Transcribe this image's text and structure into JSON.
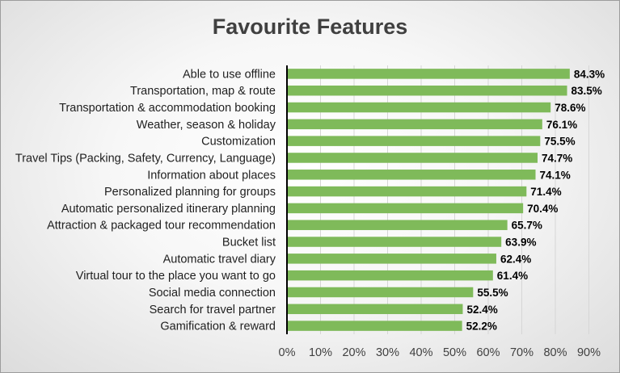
{
  "chart_data": {
    "type": "bar",
    "orientation": "horizontal",
    "title": "Favourite Features",
    "categories": [
      "Able to use offline",
      "Transportation, map & route",
      "Transportation & accommodation booking",
      "Weather, season & holiday",
      "Customization",
      "Travel Tips (Packing, Safety, Currency, Language)",
      "Information about places",
      "Personalized planning for groups",
      "Automatic personalized itinerary planning",
      "Attraction & packaged tour recommendation",
      "Bucket list",
      "Automatic travel diary",
      "Virtual tour to the place you want to go",
      "Social media connection",
      "Search for travel partner",
      "Gamification & reward"
    ],
    "values": [
      84.3,
      83.5,
      78.6,
      76.1,
      75.5,
      74.7,
      74.1,
      71.4,
      70.4,
      65.7,
      63.9,
      62.4,
      61.4,
      55.5,
      52.4,
      52.2
    ],
    "value_labels": [
      "84.3%",
      "83.5%",
      "78.6%",
      "76.1%",
      "75.5%",
      "74.7%",
      "74.1%",
      "71.4%",
      "70.4%",
      "65.7%",
      "63.9%",
      "62.4%",
      "61.4%",
      "55.5%",
      "52.4%",
      "52.2%"
    ],
    "xticks": [
      "0%",
      "10%",
      "20%",
      "30%",
      "40%",
      "50%",
      "60%",
      "70%",
      "80%",
      "90%"
    ],
    "xlim": [
      0,
      90
    ],
    "xlabel": "",
    "ylabel": "",
    "grid": true,
    "legend": false,
    "bar_color": "#7fba5a",
    "grid_color": "#d6d6d6",
    "axis_color": "#000000"
  }
}
